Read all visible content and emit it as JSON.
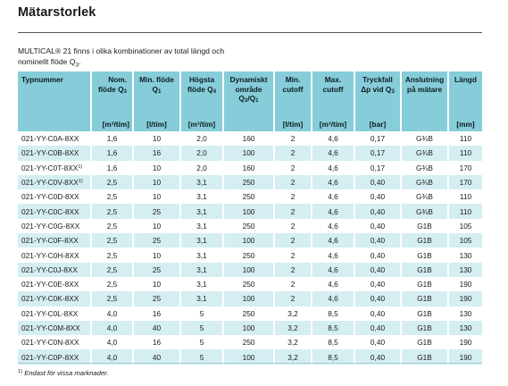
{
  "title": "Mätarstorlek",
  "intro": {
    "line1": "MULTICAL® 21 finns i olika kombinationer av total längd och",
    "line2_prefix": "nominellt flöde Q",
    "line2_sub": "3",
    "line2_suffix": "."
  },
  "table": {
    "headers": [
      {
        "main": "Typnummer",
        "sub": "",
        "unit": ""
      },
      {
        "main": "Nom. flöde Q",
        "sub": "3",
        "unit": "[m³/tim]"
      },
      {
        "main": "Min. flöde Q",
        "sub": "1",
        "unit": "[l/tim]"
      },
      {
        "main": "Högsta flöde Q",
        "sub": "4",
        "unit": "[m³/tim]"
      },
      {
        "main": "Dynamiskt område Q",
        "sub": "3",
        "tail": "/Q",
        "sub2": "1",
        "unit": ""
      },
      {
        "main": "Min. cutoff",
        "sub": "",
        "unit": "[l/tim]"
      },
      {
        "main": "Max. cutoff",
        "sub": "",
        "unit": "[m³/tim]"
      },
      {
        "main": "Tryckfall Δp vid Q",
        "sub": "3",
        "unit": "[bar]"
      },
      {
        "main": "Anslutning på mätare",
        "sub": "",
        "unit": ""
      },
      {
        "main": "Längd",
        "sub": "",
        "unit": "[mm]"
      }
    ],
    "rows": [
      {
        "typ": "021-YY-C0A-8XX",
        "fn": "",
        "q3": "1,6",
        "q1": "10",
        "q4": "2,0",
        "dyn": "160",
        "minc": "2",
        "maxc": "4,6",
        "dp": "0,17",
        "ans": "G¾B",
        "len": "110"
      },
      {
        "typ": "021-YY-C0B-8XX",
        "fn": "",
        "q3": "1,6",
        "q1": "16",
        "q4": "2,0",
        "dyn": "100",
        "minc": "2",
        "maxc": "4,6",
        "dp": "0,17",
        "ans": "G¾B",
        "len": "110"
      },
      {
        "typ": "021-YY-C0T-8XX",
        "fn": "1)",
        "q3": "1,6",
        "q1": "10",
        "q4": "2,0",
        "dyn": "160",
        "minc": "2",
        "maxc": "4,6",
        "dp": "0,17",
        "ans": "G¾B",
        "len": "170"
      },
      {
        "typ": "021-YY-C0V-8XX",
        "fn": "1)",
        "q3": "2,5",
        "q1": "10",
        "q4": "3,1",
        "dyn": "250",
        "minc": "2",
        "maxc": "4,6",
        "dp": "0,40",
        "ans": "G¾B",
        "len": "170"
      },
      {
        "typ": "021-YY-C0D-8XX",
        "fn": "",
        "q3": "2,5",
        "q1": "10",
        "q4": "3,1",
        "dyn": "250",
        "minc": "2",
        "maxc": "4,6",
        "dp": "0,40",
        "ans": "G¾B",
        "len": "110"
      },
      {
        "typ": "021-YY-C0C-8XX",
        "fn": "",
        "q3": "2,5",
        "q1": "25",
        "q4": "3,1",
        "dyn": "100",
        "minc": "2",
        "maxc": "4,6",
        "dp": "0,40",
        "ans": "G¾B",
        "len": "110"
      },
      {
        "typ": "021-YY-C0G-8XX",
        "fn": "",
        "q3": "2,5",
        "q1": "10",
        "q4": "3,1",
        "dyn": "250",
        "minc": "2",
        "maxc": "4,6",
        "dp": "0,40",
        "ans": "G1B",
        "len": "105"
      },
      {
        "typ": "021-YY-C0F-8XX",
        "fn": "",
        "q3": "2,5",
        "q1": "25",
        "q4": "3,1",
        "dyn": "100",
        "minc": "2",
        "maxc": "4,6",
        "dp": "0,40",
        "ans": "G1B",
        "len": "105"
      },
      {
        "typ": "021-YY-C0H-8XX",
        "fn": "",
        "q3": "2,5",
        "q1": "10",
        "q4": "3,1",
        "dyn": "250",
        "minc": "2",
        "maxc": "4,6",
        "dp": "0,40",
        "ans": "G1B",
        "len": "130"
      },
      {
        "typ": "021-YY-C0J-8XX",
        "fn": "",
        "q3": "2,5",
        "q1": "25",
        "q4": "3,1",
        "dyn": "100",
        "minc": "2",
        "maxc": "4,6",
        "dp": "0,40",
        "ans": "G1B",
        "len": "130"
      },
      {
        "typ": "021-YY-C0E-8XX",
        "fn": "",
        "q3": "2,5",
        "q1": "10",
        "q4": "3,1",
        "dyn": "250",
        "minc": "2",
        "maxc": "4,6",
        "dp": "0,40",
        "ans": "G1B",
        "len": "190"
      },
      {
        "typ": "021-YY-C0K-8XX",
        "fn": "",
        "q3": "2,5",
        "q1": "25",
        "q4": "3,1",
        "dyn": "100",
        "minc": "2",
        "maxc": "4,6",
        "dp": "0,40",
        "ans": "G1B",
        "len": "190"
      },
      {
        "typ": "021-YY-C0L-8XX",
        "fn": "",
        "q3": "4,0",
        "q1": "16",
        "q4": "5",
        "dyn": "250",
        "minc": "3,2",
        "maxc": "8,5",
        "dp": "0,40",
        "ans": "G1B",
        "len": "130"
      },
      {
        "typ": "021-YY-C0M-8XX",
        "fn": "",
        "q3": "4,0",
        "q1": "40",
        "q4": "5",
        "dyn": "100",
        "minc": "3,2",
        "maxc": "8,5",
        "dp": "0,40",
        "ans": "G1B",
        "len": "130"
      },
      {
        "typ": "021-YY-C0N-8XX",
        "fn": "",
        "q3": "4,0",
        "q1": "16",
        "q4": "5",
        "dyn": "250",
        "minc": "3,2",
        "maxc": "8,5",
        "dp": "0,40",
        "ans": "G1B",
        "len": "190"
      },
      {
        "typ": "021-YY-C0P-8XX",
        "fn": "",
        "q3": "4,0",
        "q1": "40",
        "q4": "5",
        "dyn": "100",
        "minc": "3,2",
        "maxc": "8,5",
        "dp": "0,40",
        "ans": "G1B",
        "len": "190"
      }
    ]
  },
  "footnote": {
    "mark": "1)",
    "text": " Endast för vissa marknader."
  }
}
